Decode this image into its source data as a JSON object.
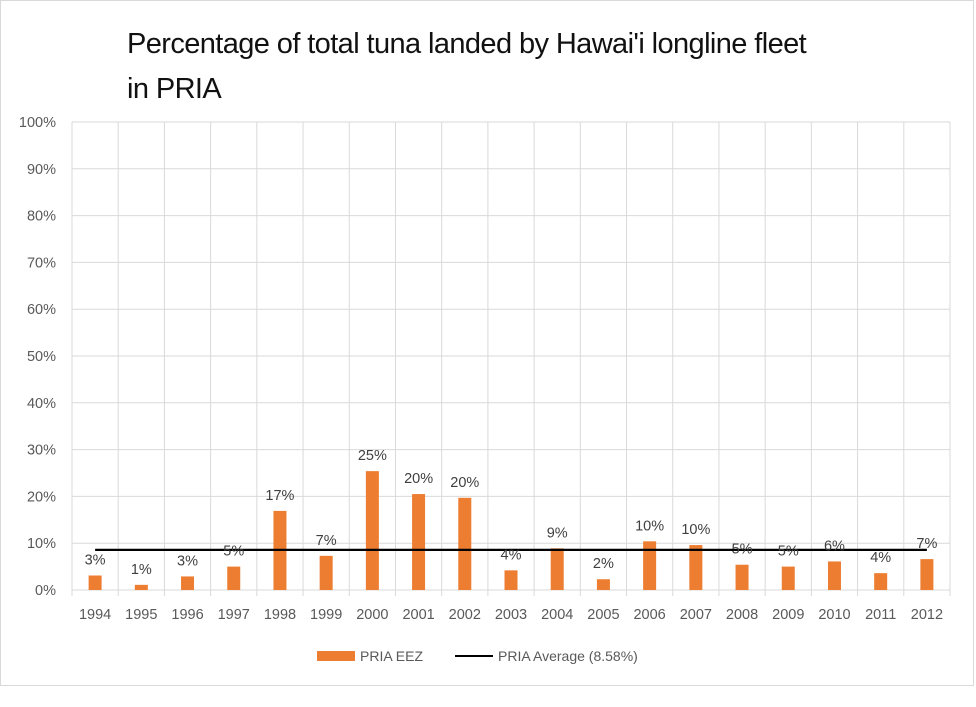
{
  "chart_data": {
    "type": "bar",
    "title": "Percentage of total tuna landed by Hawai'i longline fleet in PRIA",
    "title_lines": [
      "Percentage of total tuna landed by Hawai'i longline fleet",
      "in PRIA"
    ],
    "xlabel": "",
    "ylabel": "",
    "ylim": [
      0,
      100
    ],
    "y_ticks": [
      "0%",
      "10%",
      "20%",
      "30%",
      "40%",
      "50%",
      "60%",
      "70%",
      "80%",
      "90%",
      "100%"
    ],
    "grid": true,
    "categories": [
      "1994",
      "1995",
      "1996",
      "1997",
      "1998",
      "1999",
      "2000",
      "2001",
      "2002",
      "2003",
      "2004",
      "2005",
      "2006",
      "2007",
      "2008",
      "2009",
      "2010",
      "2011",
      "2012"
    ],
    "series": [
      {
        "name": "PRIA EEZ",
        "type": "bar",
        "color": "#ed7d31",
        "values": [
          3.1,
          1.1,
          2.9,
          5.0,
          16.9,
          7.3,
          25.4,
          20.5,
          19.7,
          4.2,
          8.9,
          2.3,
          10.4,
          9.6,
          5.4,
          5.0,
          6.1,
          3.6,
          6.6
        ],
        "labels": [
          "3%",
          "1%",
          "3%",
          "5%",
          "17%",
          "7%",
          "25%",
          "20%",
          "20%",
          "4%",
          "9%",
          "2%",
          "10%",
          "10%",
          "5%",
          "5%",
          "6%",
          "4%",
          "7%"
        ]
      },
      {
        "name": "PRIA Average (8.58%)",
        "type": "line",
        "color": "#000000",
        "value": 8.58
      }
    ],
    "legend_position": "bottom"
  }
}
